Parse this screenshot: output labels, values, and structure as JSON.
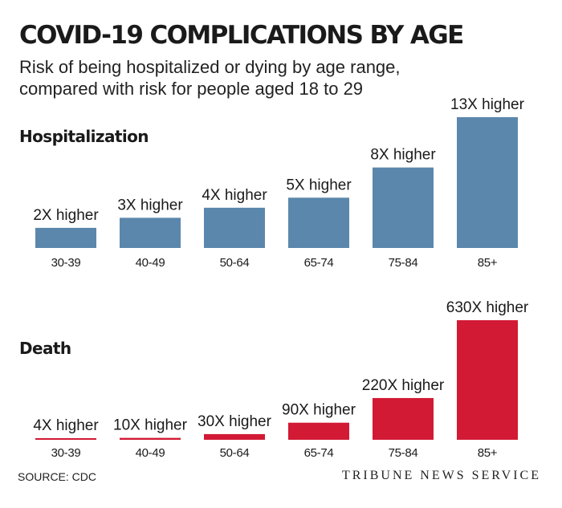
{
  "header": {
    "title": "COVID-19 COMPLICATIONS BY AGE",
    "subtitle": "Risk of being hospitalized or dying by age range, compared with risk for people aged 18 to 29"
  },
  "footer": {
    "source": "SOURCE: CDC",
    "credit": "TRIBUNE NEWS SERVICE"
  },
  "chart_data": [
    {
      "type": "bar",
      "title": "Hospitalization",
      "categories": [
        "30-39",
        "40-49",
        "50-64",
        "65-74",
        "75-84",
        "85+"
      ],
      "values": [
        2,
        3,
        4,
        5,
        8,
        13
      ],
      "data_labels": [
        "2X higher",
        "3X higher",
        "4X higher",
        "5X higher",
        "8X higher",
        "13X higher"
      ],
      "color": "#5b87ac",
      "ylim": [
        0,
        13
      ]
    },
    {
      "type": "bar",
      "title": "Death",
      "categories": [
        "30-39",
        "40-49",
        "50-64",
        "65-74",
        "75-84",
        "85+"
      ],
      "values": [
        4,
        10,
        30,
        90,
        220,
        630
      ],
      "data_labels": [
        "4X higher",
        "10X higher",
        "30X higher",
        "90X higher",
        "220X higher",
        "630X higher"
      ],
      "color": "#d21a35",
      "ylim": [
        0,
        630
      ]
    }
  ]
}
